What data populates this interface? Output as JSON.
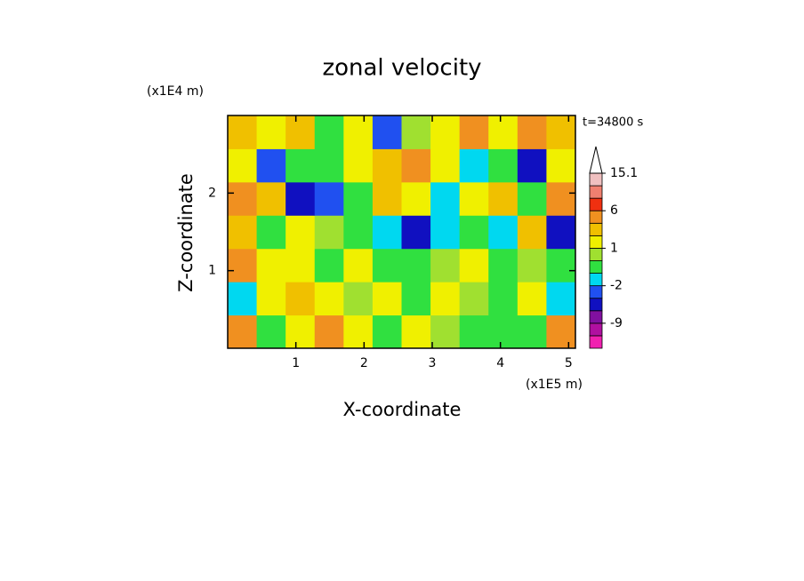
{
  "chart_data": {
    "type": "contour",
    "title": "zonal velocity",
    "x_label": "X-coordinate",
    "y_label": "Z-coordinate",
    "x_unit": "(x1E5 m)",
    "y_unit": "(x1E4 m)",
    "time_label": "t=34800 s",
    "xlim": [
      0,
      5.1
    ],
    "ylim": [
      0,
      3
    ],
    "xticks": [
      1,
      2,
      3,
      4,
      5
    ],
    "yticks": [
      1,
      2
    ],
    "x": [
      0.2125,
      0.6375,
      1.0625,
      1.4875,
      1.9125,
      2.3375,
      2.7625,
      3.1875,
      3.6125,
      4.0375,
      4.4625,
      4.8875
    ],
    "y": [
      0.214,
      0.643,
      1.071,
      1.5,
      1.929,
      2.357,
      2.786
    ],
    "z": [
      [
        4,
        -1,
        1.5,
        3,
        1.5,
        -0.5,
        1.5,
        0.5,
        -0.5,
        -1,
        -0.5,
        3
      ],
      [
        -2,
        1.5,
        2,
        1.5,
        0.5,
        1,
        -0.5,
        1,
        0.5,
        -1,
        1.5,
        -2
      ],
      [
        5,
        1.5,
        1.5,
        -0.5,
        1,
        -0.5,
        -0.5,
        0.5,
        1,
        -0.5,
        0.5,
        -1
      ],
      [
        2,
        -1,
        1,
        0.5,
        -1,
        -2,
        -5,
        -2,
        -1,
        -1.5,
        2,
        -4
      ],
      [
        4,
        2,
        -4,
        -3,
        -1,
        2,
        1.5,
        -2,
        1,
        2,
        -1,
        4
      ],
      [
        1,
        -3,
        -0.5,
        -1,
        1,
        2,
        4,
        1,
        -2,
        -0.5,
        -5,
        1
      ],
      [
        2,
        1.5,
        2,
        -0.5,
        1.5,
        -3,
        0.5,
        1.5,
        4,
        1.5,
        4,
        2
      ]
    ],
    "colorbar": {
      "levels": [
        -15,
        -12,
        -9,
        -6,
        -3,
        -2,
        -1,
        0,
        1,
        2,
        3,
        6,
        9,
        12,
        15.1
      ],
      "colors": [
        "#f020b0",
        "#b010a0",
        "#8010a0",
        "#1010c0",
        "#2050f0",
        "#00d8f0",
        "#30e040",
        "#a0e030",
        "#f0f000",
        "#f0c000",
        "#f09020",
        "#f03010",
        "#f08070",
        "#f0c0c0"
      ],
      "ticks": [
        -9,
        -2,
        1,
        6,
        15.1
      ]
    }
  }
}
